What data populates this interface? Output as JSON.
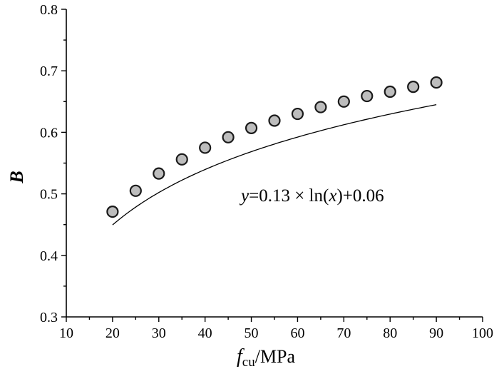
{
  "chart_data": {
    "type": "scatter",
    "title": "",
    "xlabel": {
      "main": "f",
      "sub": "cu",
      "unit": "/MPa"
    },
    "ylabel": "B",
    "xlim": [
      10,
      100
    ],
    "ylim": [
      0.3,
      0.8
    ],
    "x_ticks": [
      "10",
      "20",
      "30",
      "40",
      "50",
      "60",
      "70",
      "80",
      "90",
      "100"
    ],
    "y_ticks": [
      "0.3",
      "0.4",
      "0.5",
      "0.6",
      "0.7",
      "0.8"
    ],
    "grid": false,
    "series": [
      {
        "x": [
          20,
          25,
          30,
          35,
          40,
          45,
          50,
          55,
          60,
          65,
          70,
          75,
          80,
          85,
          90
        ],
        "y": [
          0.471,
          0.505,
          0.533,
          0.556,
          0.575,
          0.592,
          0.607,
          0.619,
          0.63,
          0.641,
          0.65,
          0.659,
          0.666,
          0.674,
          0.681
        ]
      }
    ],
    "fit": {
      "a": 0.13,
      "b": 0.06,
      "x_range": [
        20,
        90
      ]
    },
    "annotation": {
      "lhs": "y",
      "eq_mid": "=0.13 × ln(",
      "var": "x",
      "eq_end": ")+0.06"
    }
  }
}
